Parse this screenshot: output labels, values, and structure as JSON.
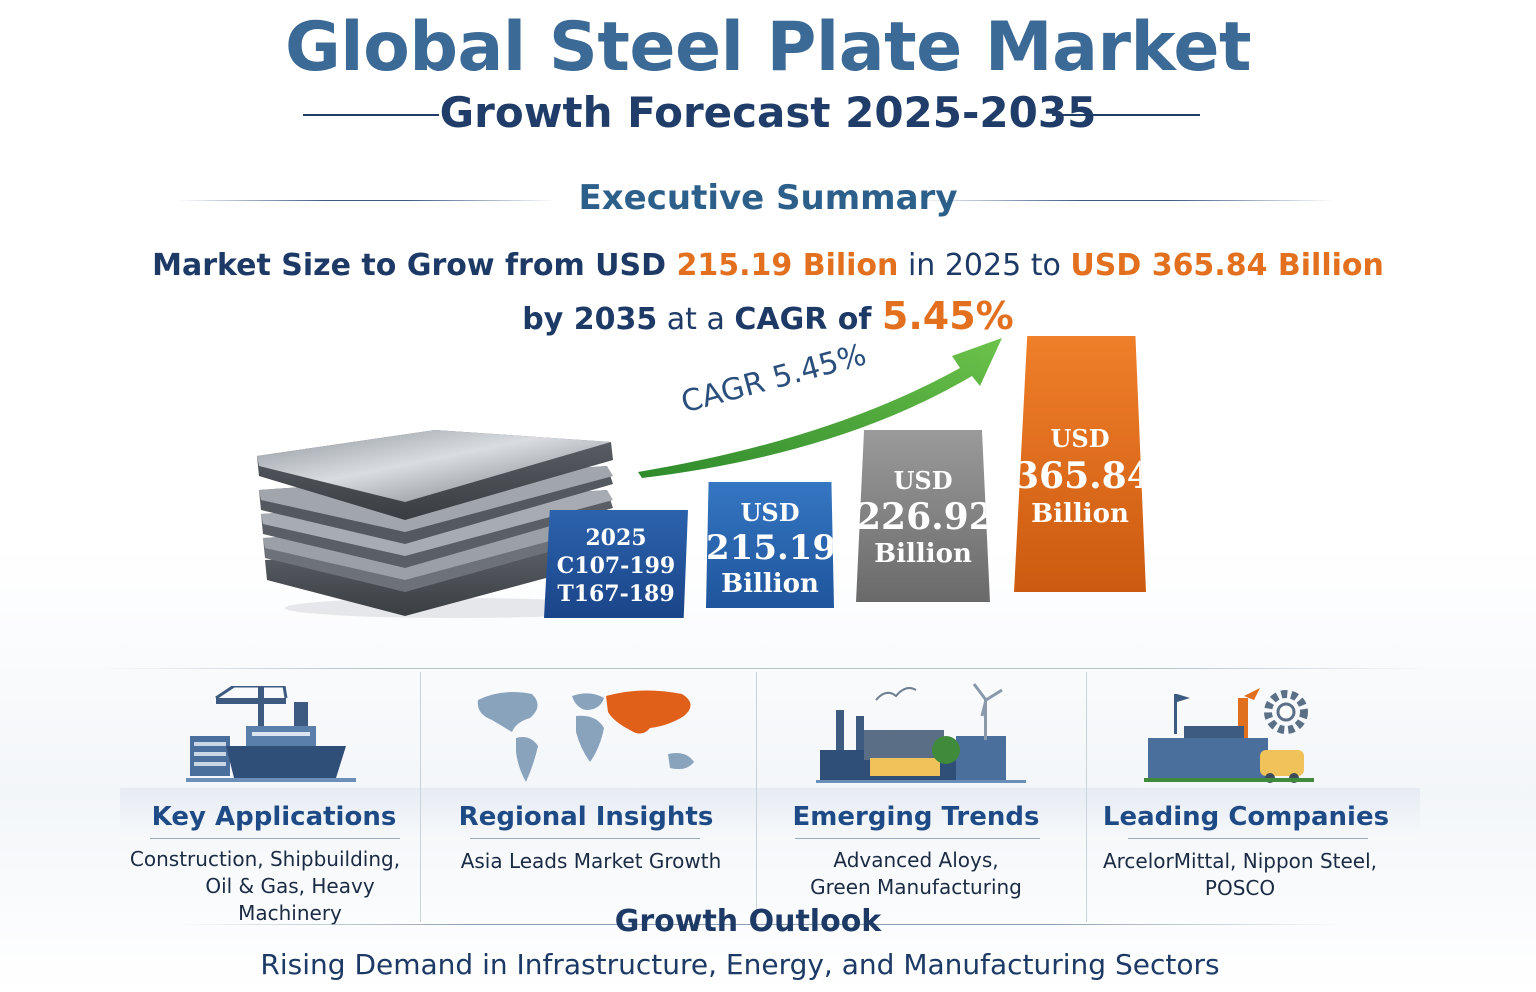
{
  "header": {
    "title": "Global Steel Plate Market",
    "subtitle": "Growth Forecast 2025-2035"
  },
  "summary": {
    "section_title": "Executive Summary",
    "line1": {
      "part1": "Market Size to Grow from USD ",
      "value1": "215.19 Bilion",
      "part2": " in 2025 to ",
      "value2": "USD 365.84 Billion"
    },
    "line2": {
      "part1": "by 2035",
      "part2": " at a ",
      "part3": "CAGR of ",
      "value": "5.45%"
    }
  },
  "chart": {
    "arrow_label": "CAGR 5.45%",
    "bars": [
      {
        "line1": "2025",
        "line2": "C107-199",
        "line3": "T167-189",
        "color": "#1f4f95"
      },
      {
        "line1": "USD",
        "line2": "215.19",
        "line3": "Billion",
        "color": "#2364ae"
      },
      {
        "line1": "USD",
        "line2": "226.92",
        "line3": "Billion",
        "color": "#7f7f7f"
      },
      {
        "line1": "USD",
        "line2": "365.84",
        "line3": "Billion",
        "color": "#e26b1a"
      }
    ],
    "arrow_color": "#4fae3a"
  },
  "columns": [
    {
      "icon": "ship-port-icon",
      "title": "Key Applications",
      "text1": "Construction, Shipbuilding,",
      "text2": "Oil & Gas, Heavy Machinery"
    },
    {
      "icon": "world-map-icon",
      "title": "Regional Insights",
      "text1": "Asia Leads Market Growth",
      "text2": ""
    },
    {
      "icon": "factory-wind-icon",
      "title": "Emerging Trends",
      "text1": "Advanced Aloys,",
      "text2": "Green Manufacturing"
    },
    {
      "icon": "industry-gear-icon",
      "title": "Leading Companies",
      "text1": "ArcelorMittal, Nippon Steel,",
      "text2": "POSCO"
    }
  ],
  "outlook": {
    "title": "Growth Outlook",
    "text": "Rising Demand in Infrastructure, Energy, and Manufacturing Sectors"
  }
}
